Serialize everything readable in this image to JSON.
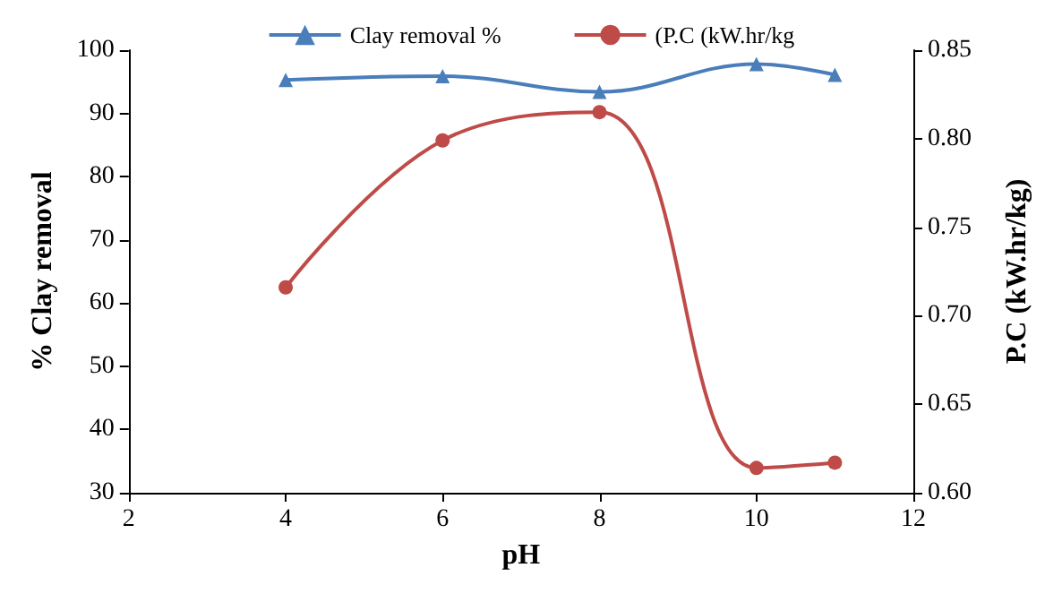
{
  "chart_data": {
    "type": "line",
    "xlabel": "pH",
    "ylabel": "% Clay removal",
    "y2label": "P.C (kW.hr/kg)",
    "x": [
      4,
      6,
      8,
      10,
      11
    ],
    "series": [
      {
        "name": "Clay removal %",
        "color": "#4a7ebb",
        "marker": "triangle",
        "values": [
          95.3,
          95.9,
          93.4,
          97.8,
          96.1
        ]
      },
      {
        "name": "(P.C (kW.hr/kg",
        "color": "#be4b48",
        "marker": "circle",
        "axis": "y2",
        "values": [
          0.716,
          0.799,
          0.815,
          0.614,
          0.617
        ]
      }
    ],
    "xlim": [
      2,
      12
    ],
    "xticks": [
      2,
      4,
      6,
      8,
      10,
      12
    ],
    "ylim": [
      30,
      100
    ],
    "yticks": [
      30,
      40,
      50,
      60,
      70,
      80,
      90,
      100
    ],
    "y2lim": [
      0.6,
      0.85
    ],
    "y2ticks": [
      {
        "value": 0.6,
        "label": "0.60"
      },
      0.65,
      {
        "value": 0.7,
        "label": "0.70"
      },
      0.75,
      {
        "value": 0.8,
        "label": "0.80"
      },
      0.85
    ],
    "grid": false,
    "legend": "top",
    "line_style": "solid"
  }
}
